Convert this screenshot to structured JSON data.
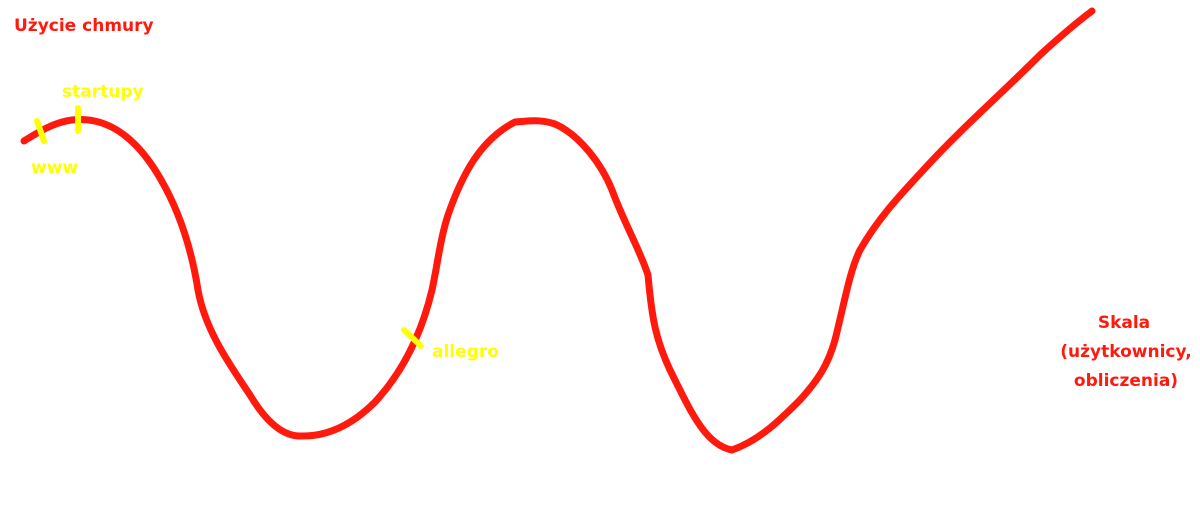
{
  "diagram": {
    "title": "Użycie chmury",
    "axis_label_lines": [
      "Skala",
      "(użytkownicy,",
      "obliczenia)"
    ],
    "markers": [
      {
        "id": "www",
        "label": "www"
      },
      {
        "id": "startupy",
        "label": "startupy"
      },
      {
        "id": "allegro",
        "label": "allegro"
      }
    ],
    "colors": {
      "curve": "#ff1a0d",
      "text_primary": "#ff1a0d",
      "marker": "#ffff00",
      "background": "#ffffff"
    }
  }
}
